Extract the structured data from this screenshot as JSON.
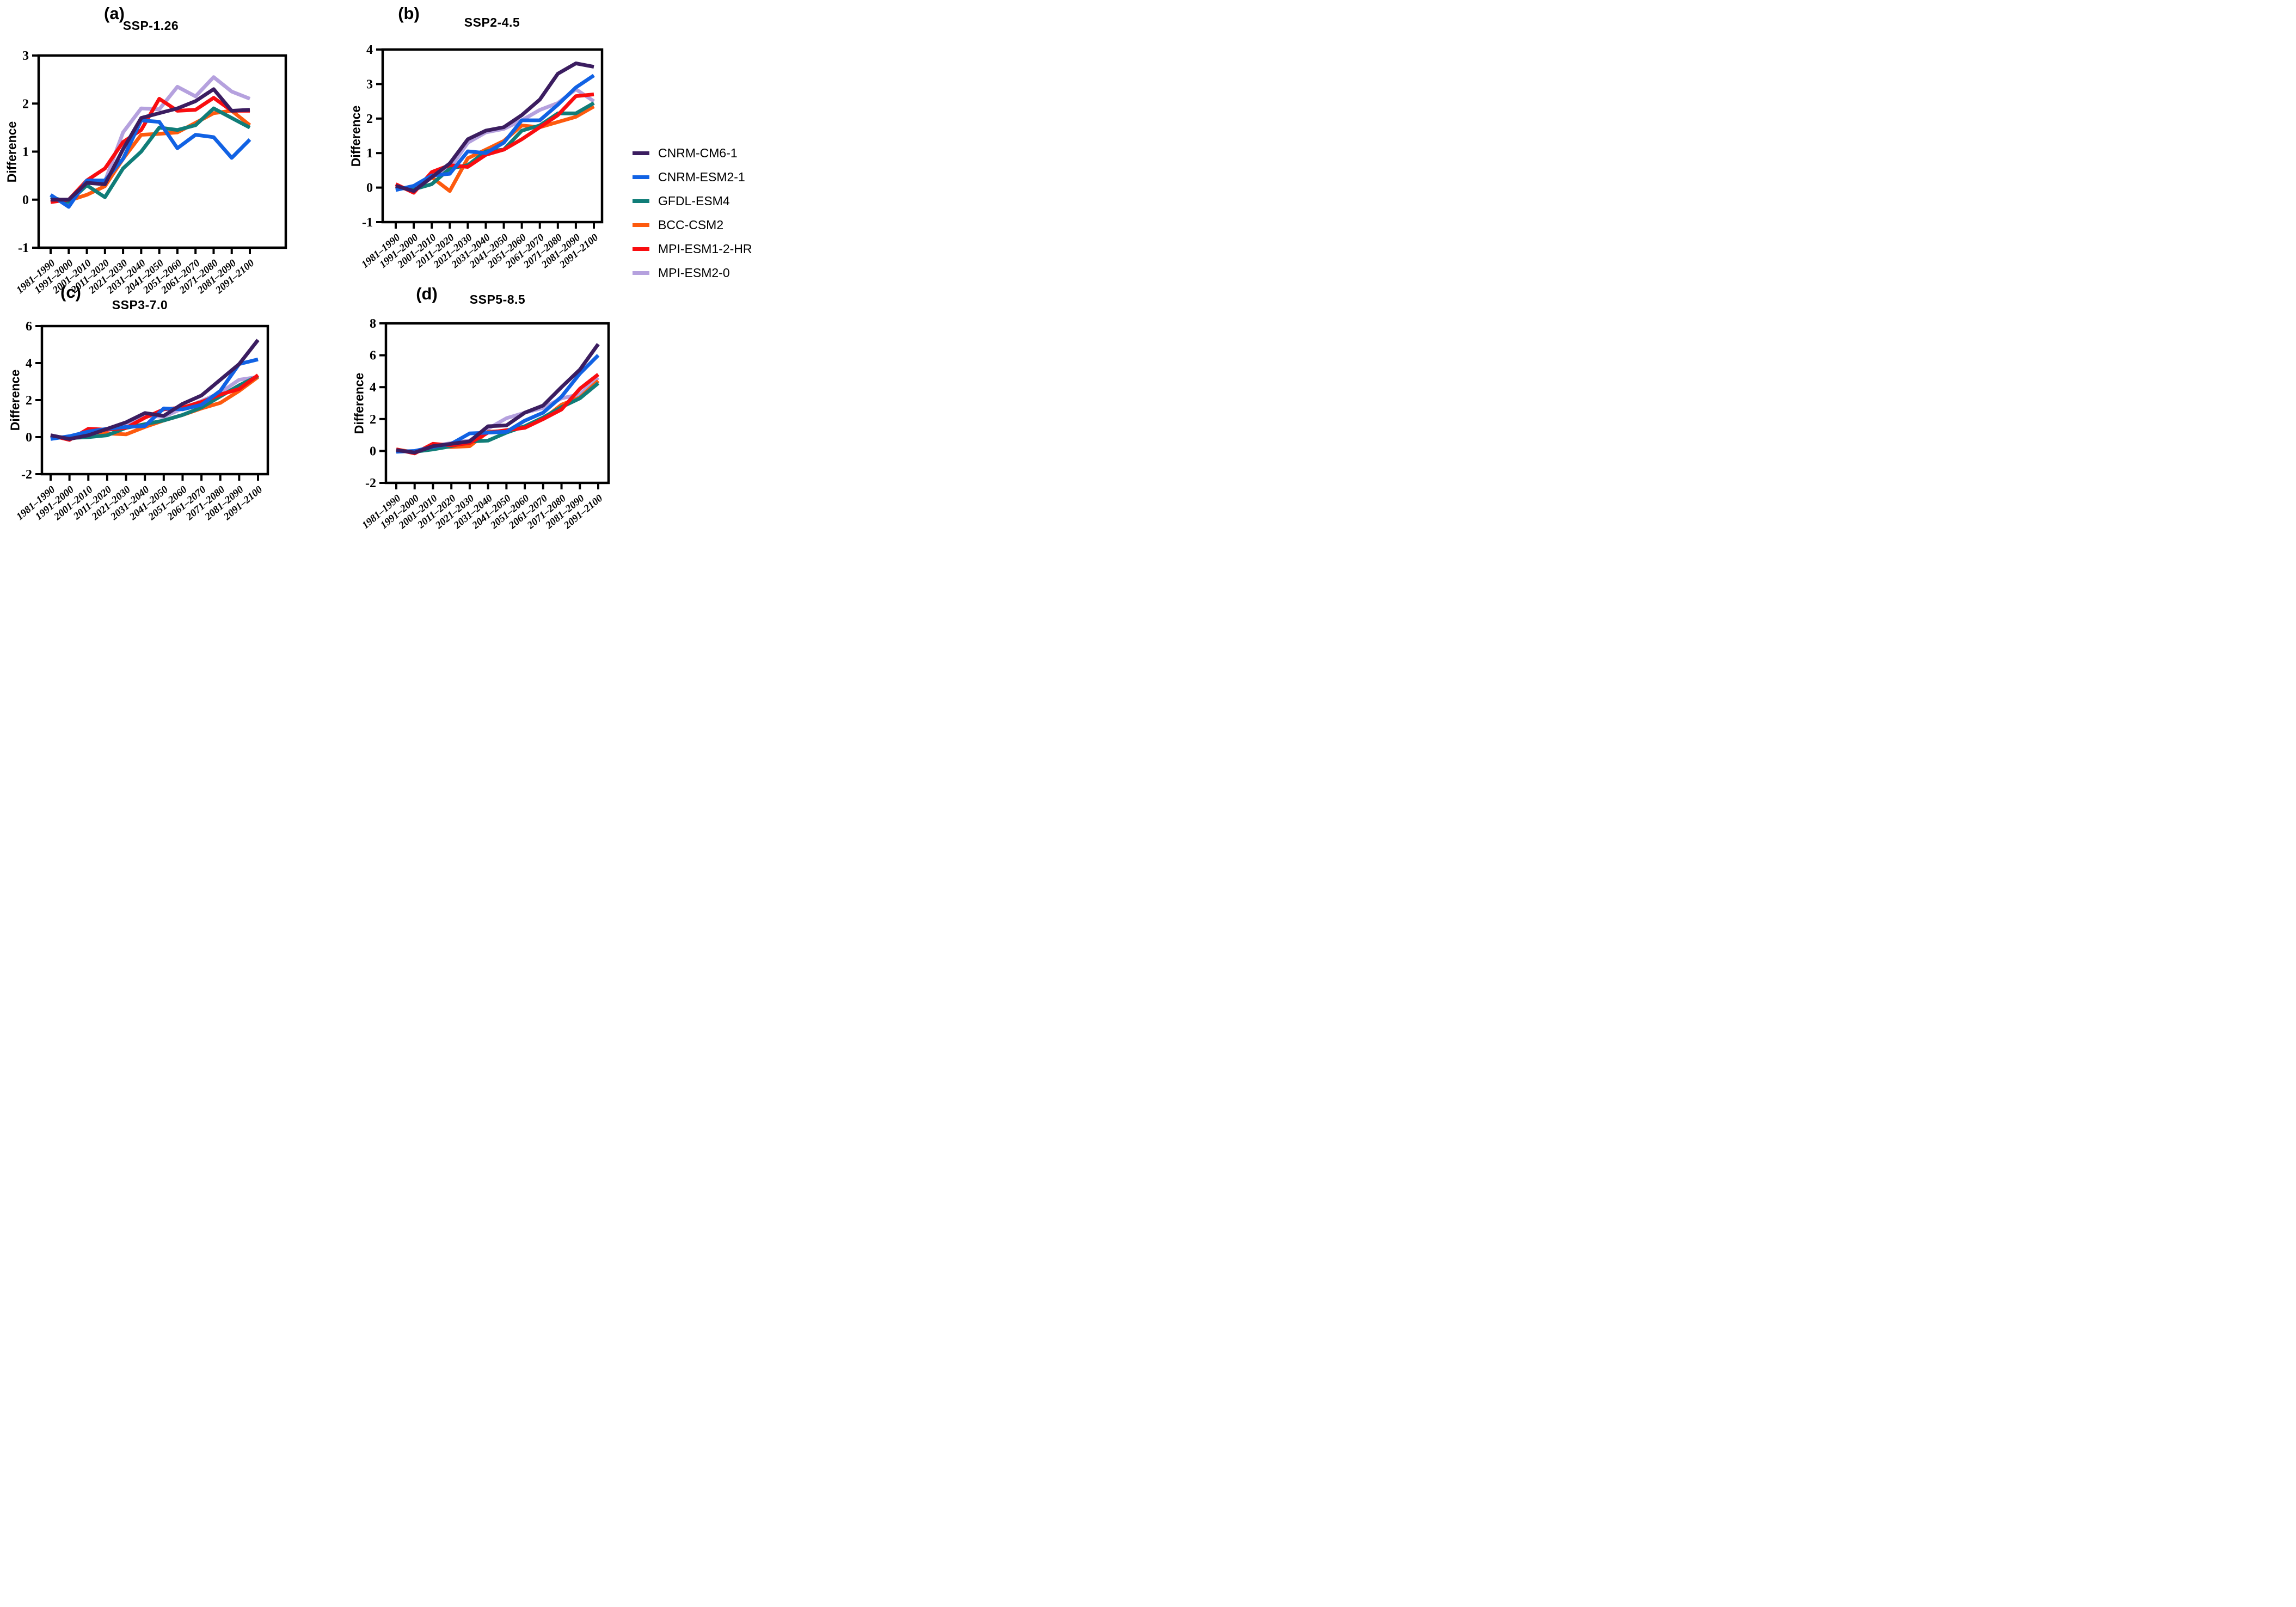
{
  "figure": {
    "ylabel": "Difference",
    "background": "#ffffff",
    "axis_color": "#000000",
    "legend": [
      {
        "name": "CNRM-CM6-1",
        "color": "#3b1d60"
      },
      {
        "name": "CNRM-ESM2-1",
        "color": "#1162e4"
      },
      {
        "name": "GFDL-ESM4",
        "color": "#107d78"
      },
      {
        "name": "BCC-CSM2",
        "color": "#fd5a0e"
      },
      {
        "name": "MPI-ESM1-2-HR",
        "color": "#f90d10"
      },
      {
        "name": "MPI-ESM2-0",
        "color": "#b5a1de"
      }
    ]
  },
  "chart_data": [
    {
      "panel": "(a)",
      "title": "SSP-1.26",
      "type": "line",
      "ylabel": "Difference",
      "ylim": [
        -1,
        3
      ],
      "yticks": [
        3,
        2,
        1,
        0,
        -1
      ],
      "legend_position": "outside-right",
      "grid": false,
      "categories": [
        "1981–1990",
        "1991–2000",
        "2001–2010",
        "2011–2020",
        "2021–2030",
        "2031–2040",
        "2041–2050",
        "2051–2060",
        "2061–2070",
        "2071–2080",
        "2081–2090",
        "2091–2100"
      ],
      "series": [
        {
          "name": "CNRM-CM6-1",
          "values": [
            0.0,
            0.0,
            0.35,
            0.32,
            1.05,
            1.7,
            1.8,
            1.9,
            2.05,
            2.3,
            1.85,
            1.87
          ]
        },
        {
          "name": "CNRM-ESM2-1",
          "values": [
            0.1,
            -0.15,
            0.4,
            0.4,
            0.85,
            1.65,
            1.62,
            1.07,
            1.35,
            1.3,
            0.87,
            1.25
          ]
        },
        {
          "name": "GFDL-ESM4",
          "values": [
            0.05,
            -0.05,
            0.3,
            0.05,
            0.65,
            1.0,
            1.5,
            1.45,
            1.55,
            1.9,
            1.7,
            1.5
          ]
        },
        {
          "name": "BCC-CSM2",
          "values": [
            0.0,
            -0.02,
            0.1,
            0.28,
            0.85,
            1.35,
            1.37,
            1.4,
            1.6,
            1.8,
            1.85,
            1.55
          ]
        },
        {
          "name": "MPI-ESM1-2-HR",
          "values": [
            -0.05,
            0.0,
            0.4,
            0.65,
            1.2,
            1.45,
            2.1,
            1.85,
            1.87,
            2.12,
            1.85,
            1.85
          ]
        },
        {
          "name": "MPI-ESM2-0",
          "values": [
            0.0,
            0.0,
            0.38,
            0.38,
            1.4,
            1.9,
            1.88,
            2.35,
            2.15,
            2.55,
            2.25,
            2.1
          ]
        }
      ]
    },
    {
      "panel": "(b)",
      "title": "SSP2-4.5",
      "type": "line",
      "ylabel": "Difference",
      "ylim": [
        -1,
        4
      ],
      "yticks": [
        4,
        3,
        2,
        1,
        0,
        -1
      ],
      "grid": false,
      "categories": [
        "1981–1990",
        "1991–2000",
        "2001–2010",
        "2011–2020",
        "2021–2030",
        "2031–2040",
        "2041–2050",
        "2051–2060",
        "2061–2070",
        "2071–2080",
        "2081–2090",
        "2091–2100"
      ],
      "series": [
        {
          "name": "CNRM-CM6-1",
          "values": [
            0.05,
            -0.1,
            0.3,
            0.7,
            1.4,
            1.65,
            1.75,
            2.1,
            2.55,
            3.3,
            3.6,
            3.5
          ]
        },
        {
          "name": "CNRM-ESM2-1",
          "values": [
            -0.07,
            0.05,
            0.35,
            0.4,
            1.05,
            1.0,
            1.3,
            1.95,
            1.95,
            2.4,
            2.9,
            3.25
          ]
        },
        {
          "name": "GFDL-ESM4",
          "values": [
            0.0,
            -0.05,
            0.1,
            0.55,
            0.65,
            1.05,
            1.1,
            1.65,
            1.8,
            2.15,
            2.15,
            2.45
          ]
        },
        {
          "name": "BCC-CSM2",
          "values": [
            0.05,
            -0.1,
            0.3,
            -0.1,
            0.85,
            1.1,
            1.35,
            1.8,
            1.75,
            1.9,
            2.05,
            2.35
          ]
        },
        {
          "name": "MPI-ESM1-2-HR",
          "values": [
            0.1,
            -0.15,
            0.45,
            0.65,
            0.6,
            0.95,
            1.1,
            1.4,
            1.75,
            2.1,
            2.65,
            2.7
          ]
        },
        {
          "name": "MPI-ESM2-0",
          "values": [
            0.0,
            -0.05,
            0.3,
            0.55,
            1.3,
            1.6,
            1.7,
            1.95,
            2.25,
            2.45,
            2.85,
            2.5
          ]
        }
      ]
    },
    {
      "panel": "(c)",
      "title": "SSP3-7.0",
      "type": "line",
      "ylabel": "Difference",
      "ylim": [
        -2,
        6
      ],
      "yticks": [
        6,
        4,
        2,
        0,
        -2
      ],
      "grid": false,
      "categories": [
        "1981–1990",
        "1991–2000",
        "2001–2010",
        "2011–2020",
        "2021–2030",
        "2031–2040",
        "2041–2050",
        "2051–2060",
        "2061–2070",
        "2071–2080",
        "2081–2090",
        "2091–2100"
      ],
      "series": [
        {
          "name": "CNRM-CM6-1",
          "values": [
            0.1,
            -0.1,
            0.1,
            0.45,
            0.8,
            1.3,
            1.15,
            1.8,
            2.25,
            3.1,
            3.95,
            5.25
          ]
        },
        {
          "name": "CNRM-ESM2-1",
          "values": [
            -0.1,
            0.05,
            0.3,
            0.45,
            0.55,
            0.6,
            1.55,
            1.5,
            1.75,
            2.5,
            3.95,
            4.2
          ]
        },
        {
          "name": "GFDL-ESM4",
          "values": [
            0.05,
            -0.05,
            0.0,
            0.1,
            0.5,
            0.7,
            0.9,
            1.2,
            1.6,
            2.2,
            2.8,
            3.3
          ]
        },
        {
          "name": "BCC-CSM2",
          "values": [
            0.05,
            -0.1,
            0.3,
            0.2,
            0.15,
            0.55,
            0.9,
            1.2,
            1.55,
            1.85,
            2.5,
            3.25
          ]
        },
        {
          "name": "MPI-ESM1-2-HR",
          "values": [
            0.1,
            -0.15,
            0.45,
            0.4,
            0.5,
            1.05,
            1.5,
            1.6,
            1.9,
            2.3,
            2.6,
            3.35
          ]
        },
        {
          "name": "MPI-ESM2-0",
          "values": [
            0.05,
            -0.05,
            0.2,
            0.4,
            0.75,
            1.15,
            1.1,
            1.55,
            1.95,
            2.4,
            3.1,
            3.25
          ]
        }
      ]
    },
    {
      "panel": "(d)",
      "title": "SSP5-8.5",
      "type": "line",
      "ylabel": "Difference",
      "ylim": [
        -2,
        8
      ],
      "yticks": [
        8,
        6,
        4,
        2,
        0,
        -2
      ],
      "grid": false,
      "categories": [
        "1981–1990",
        "1991–2000",
        "2001–2010",
        "2011–2020",
        "2021–2030",
        "2031–2040",
        "2041–2050",
        "2051–2060",
        "2061–2070",
        "2071–2080",
        "2081–2090",
        "2091–2100"
      ],
      "series": [
        {
          "name": "CNRM-CM6-1",
          "values": [
            0.05,
            -0.1,
            0.3,
            0.45,
            0.6,
            1.55,
            1.6,
            2.4,
            2.85,
            4.0,
            5.1,
            6.7
          ]
        },
        {
          "name": "CNRM-ESM2-1",
          "values": [
            -0.05,
            0.0,
            0.25,
            0.45,
            1.1,
            1.15,
            1.2,
            1.9,
            2.4,
            3.4,
            4.85,
            6.0
          ]
        },
        {
          "name": "GFDL-ESM4",
          "values": [
            0.0,
            -0.05,
            0.1,
            0.3,
            0.6,
            0.65,
            1.15,
            1.55,
            2.1,
            2.75,
            3.3,
            4.25
          ]
        },
        {
          "name": "BCC-CSM2",
          "values": [
            0.1,
            -0.1,
            0.3,
            0.25,
            0.3,
            1.2,
            1.25,
            1.55,
            2.0,
            2.9,
            3.35,
            4.4
          ]
        },
        {
          "name": "MPI-ESM1-2-HR",
          "values": [
            0.1,
            -0.15,
            0.45,
            0.35,
            0.5,
            1.15,
            1.3,
            1.45,
            2.0,
            2.6,
            3.9,
            4.8
          ]
        },
        {
          "name": "MPI-ESM2-0",
          "values": [
            0.05,
            -0.05,
            0.3,
            0.5,
            0.65,
            1.4,
            2.05,
            2.4,
            2.7,
            3.3,
            3.55,
            4.6
          ]
        }
      ]
    }
  ]
}
